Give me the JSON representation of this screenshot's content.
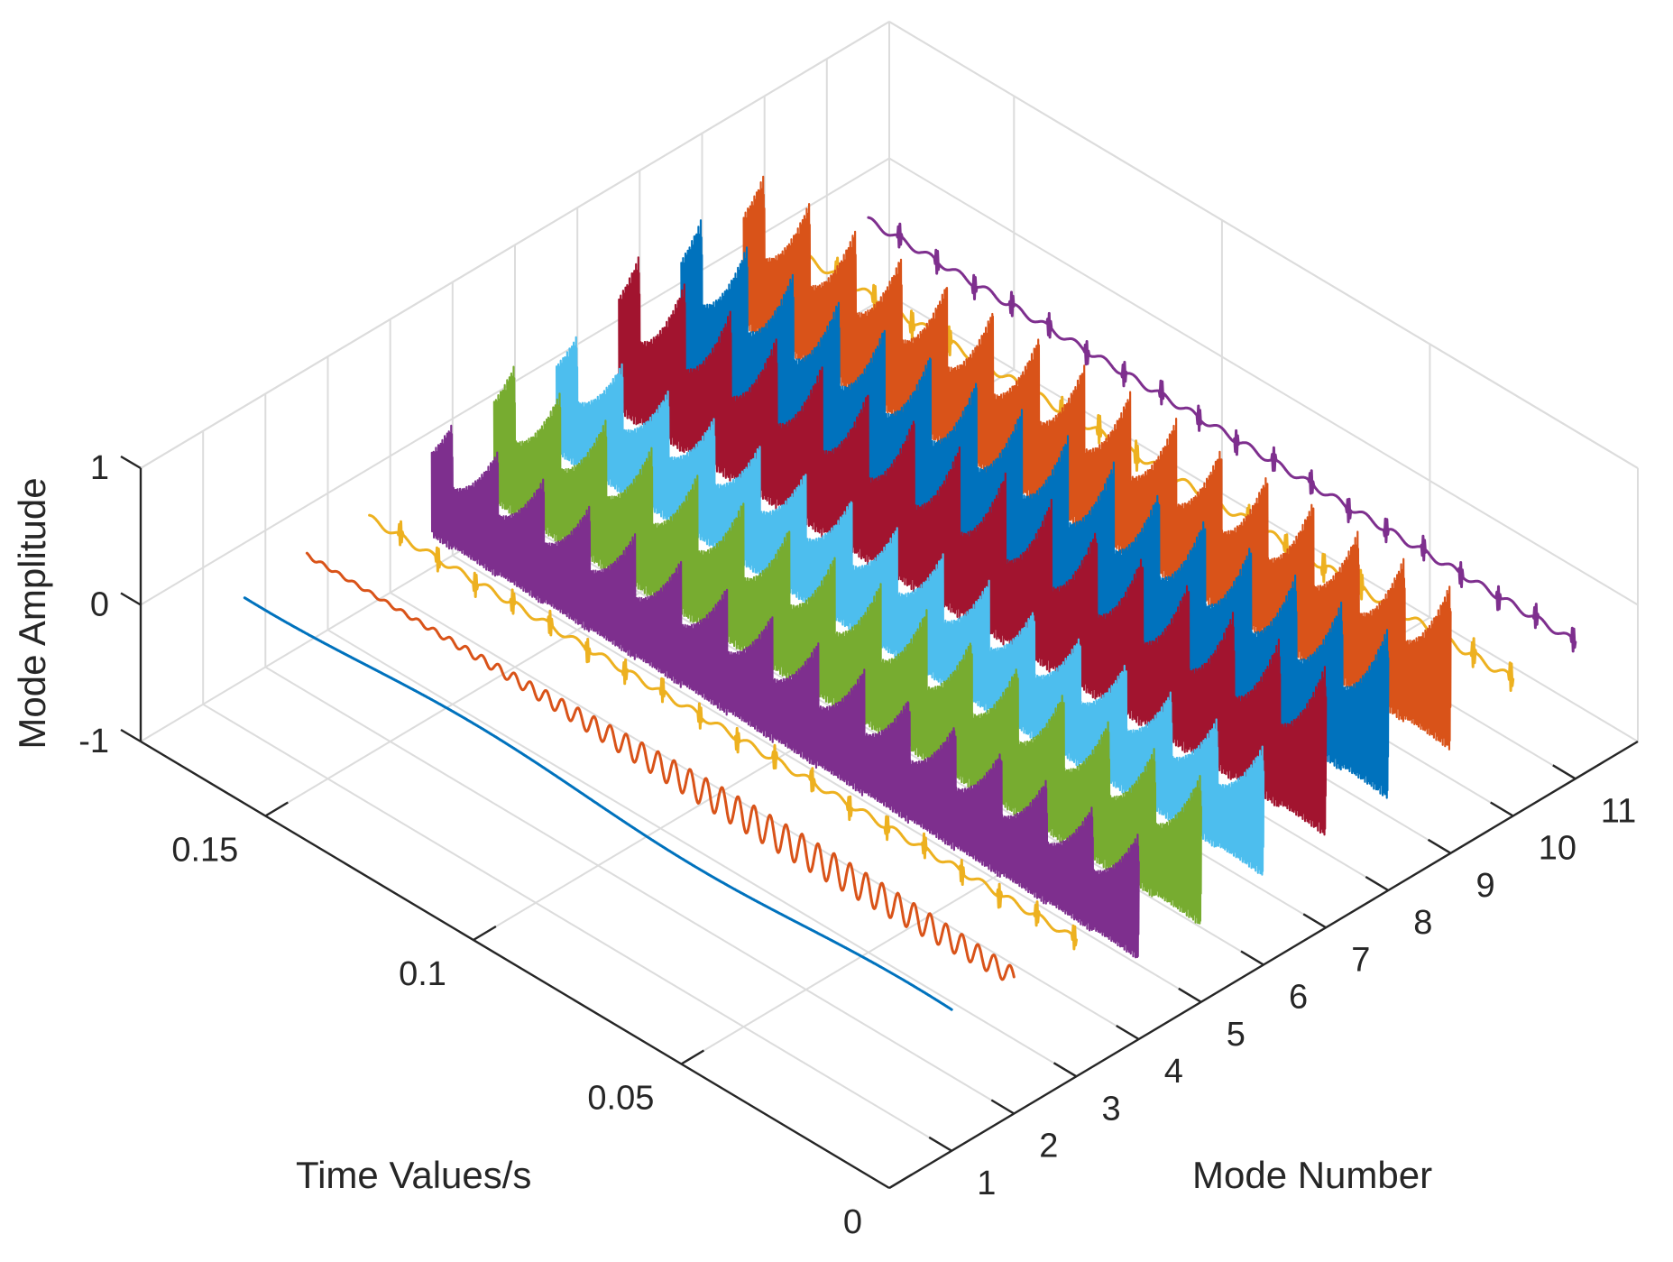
{
  "chart_data": {
    "type": "line",
    "plot_style": "3d-waterfall",
    "title": "",
    "xlabel": "Time Values/s",
    "ylabel": "Mode Number",
    "zlabel": "Mode Amplitude",
    "xlim": [
      0,
      0.18
    ],
    "ylim": [
      0,
      12
    ],
    "zlim": [
      -1,
      1
    ],
    "time_ticks": [
      {
        "value": 0,
        "label": "0"
      },
      {
        "value": 0.05,
        "label": "0.05"
      },
      {
        "value": 0.1,
        "label": "0.1"
      },
      {
        "value": 0.15,
        "label": "0.15"
      }
    ],
    "mode_ticks": [
      {
        "value": 1,
        "label": "1"
      },
      {
        "value": 2,
        "label": "2"
      },
      {
        "value": 3,
        "label": "3"
      },
      {
        "value": 4,
        "label": "4"
      },
      {
        "value": 5,
        "label": "5"
      },
      {
        "value": 6,
        "label": "6"
      },
      {
        "value": 7,
        "label": "7"
      },
      {
        "value": 8,
        "label": "8"
      },
      {
        "value": 9,
        "label": "9"
      },
      {
        "value": 10,
        "label": "10"
      },
      {
        "value": 11,
        "label": "11"
      }
    ],
    "amplitude_ticks": [
      {
        "value": -1,
        "label": "-1"
      },
      {
        "value": 0,
        "label": "0"
      },
      {
        "value": 1,
        "label": "1"
      }
    ],
    "time_range_s": [
      0,
      0.17
    ],
    "series": [
      {
        "name": "Mode 1",
        "mode": 1,
        "color": "#0072BD",
        "amplitude_range": [
          -0.05,
          0.05
        ],
        "oscillation": "slow smooth drift"
      },
      {
        "name": "Mode 2",
        "mode": 2,
        "color": "#D95319",
        "amplitude_range": [
          -0.12,
          0.12
        ],
        "oscillation": "fine steady oscillation"
      },
      {
        "name": "Mode 3",
        "mode": 3,
        "color": "#EDB120",
        "amplitude_range": [
          -0.1,
          0.1
        ],
        "oscillation": "thin trace with periodic spikes"
      },
      {
        "name": "Mode 4",
        "mode": 4,
        "color": "#7E2F8E",
        "amplitude_range": [
          -0.8,
          0.45
        ],
        "oscillation": "large sawtooth bursts"
      },
      {
        "name": "Mode 5",
        "mode": 5,
        "color": "#77AC30",
        "amplitude_range": [
          -0.9,
          0.6
        ],
        "oscillation": "large sawtooth bursts"
      },
      {
        "name": "Mode 6",
        "mode": 6,
        "color": "#4DBEEE",
        "amplitude_range": [
          -0.75,
          0.55
        ],
        "oscillation": "dense noisy band"
      },
      {
        "name": "Mode 7",
        "mode": 7,
        "color": "#A2142F",
        "amplitude_range": [
          -0.85,
          0.85
        ],
        "oscillation": "dense band with peaks"
      },
      {
        "name": "Mode 8",
        "mode": 8,
        "color": "#0072BD",
        "amplitude_range": [
          -0.85,
          0.85
        ],
        "oscillation": "dense band with peaks"
      },
      {
        "name": "Mode 9",
        "mode": 9,
        "color": "#D95319",
        "amplitude_range": [
          -0.75,
          0.9
        ],
        "oscillation": "dense band with tall peaks"
      },
      {
        "name": "Mode 10",
        "mode": 10,
        "color": "#EDB120",
        "amplitude_range": [
          -0.12,
          0.12
        ],
        "oscillation": "thin trace with periodic spikes"
      },
      {
        "name": "Mode 11",
        "mode": 11,
        "color": "#7E2F8E",
        "amplitude_range": [
          -0.1,
          0.1
        ],
        "oscillation": "thin trace with periodic bulges"
      }
    ]
  }
}
